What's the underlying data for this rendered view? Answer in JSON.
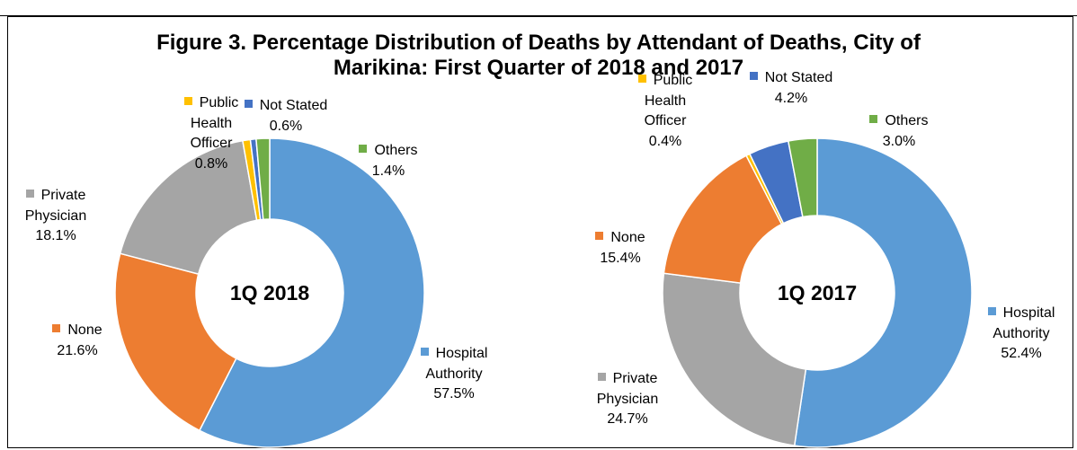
{
  "title": "Figure 3. Percentage Distribution of Deaths by Attendant of Deaths, City of Marikina: First Quarter of 2018 and 2017",
  "chart_data": [
    {
      "type": "pie",
      "center_label": "1Q 2018",
      "categories": [
        "Hospital Authority",
        "None",
        "Private Physician",
        "Public Health Officer",
        "Not Stated",
        "Others"
      ],
      "values": [
        57.5,
        21.6,
        18.1,
        0.8,
        0.6,
        1.4
      ],
      "value_labels": [
        "57.5%",
        "21.6%",
        "18.1%",
        "0.8%",
        "0.6%",
        "1.4%"
      ],
      "colors": [
        "#5b9bd5",
        "#ed7d31",
        "#a5a5a5",
        "#ffc000",
        "#4472c4",
        "#70ad47"
      ]
    },
    {
      "type": "pie",
      "center_label": "1Q 2017",
      "categories": [
        "Hospital Authority",
        "Private Physician",
        "None",
        "Public Health Officer",
        "Not Stated",
        "Others"
      ],
      "values": [
        52.4,
        24.7,
        15.4,
        0.4,
        4.2,
        3.0
      ],
      "value_labels": [
        "52.4%",
        "24.7%",
        "15.4%",
        "0.4%",
        "4.2%",
        "3.0%"
      ],
      "colors": [
        "#5b9bd5",
        "#a5a5a5",
        "#ed7d31",
        "#ffc000",
        "#4472c4",
        "#70ad47"
      ]
    }
  ]
}
